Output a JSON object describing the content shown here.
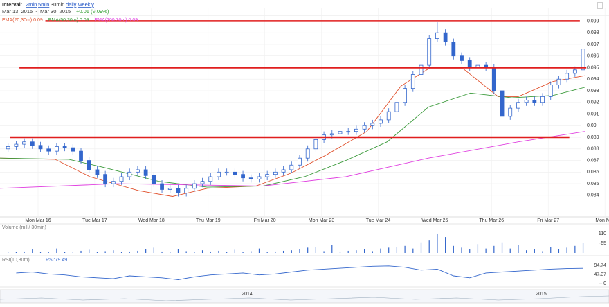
{
  "header": {
    "interval_label": "Interval:",
    "intervals": [
      "2min",
      "5min",
      "30min",
      "daily",
      "weekly"
    ],
    "range": "Mar 13, 2015  -  Mar 30, 2015",
    "change": "+0.01 (9.09%)"
  },
  "chart_data": [
    {
      "type": "candlestick",
      "color": "#3366cc",
      "x": [
        1,
        2,
        3,
        4,
        5,
        6,
        7,
        8,
        9,
        10,
        11,
        12,
        13,
        14,
        15,
        16,
        17,
        18,
        19,
        20,
        21,
        22,
        23,
        24,
        25,
        26,
        27,
        28,
        29,
        30,
        31,
        32,
        33,
        34,
        35,
        36,
        37,
        38,
        39,
        40,
        41,
        42,
        43,
        44,
        45,
        46,
        47,
        48,
        49,
        50,
        51,
        52,
        53,
        54,
        55,
        56,
        57,
        58,
        59,
        60,
        61,
        62,
        63,
        64,
        65,
        66,
        67,
        68,
        69,
        70,
        71,
        72
      ],
      "open": [
        0.088,
        0.0882,
        0.0884,
        0.0886,
        0.0883,
        0.088,
        0.0878,
        0.0882,
        0.0881,
        0.0878,
        0.087,
        0.0862,
        0.0858,
        0.085,
        0.0852,
        0.0856,
        0.086,
        0.0862,
        0.0857,
        0.085,
        0.0845,
        0.0846,
        0.0842,
        0.0846,
        0.085,
        0.0852,
        0.0856,
        0.086,
        0.086,
        0.0858,
        0.0855,
        0.0854,
        0.0856,
        0.0858,
        0.086,
        0.0862,
        0.0866,
        0.0872,
        0.088,
        0.0888,
        0.0892,
        0.0893,
        0.0895,
        0.0895,
        0.0897,
        0.09,
        0.0902,
        0.0905,
        0.0912,
        0.092,
        0.0932,
        0.0944,
        0.0952,
        0.0975,
        0.098,
        0.0972,
        0.096,
        0.0956,
        0.095,
        0.0952,
        0.095,
        0.093,
        0.0908,
        0.0915,
        0.092,
        0.0922,
        0.092,
        0.0925,
        0.0935,
        0.094,
        0.0945,
        0.0948
      ],
      "high": [
        0.0885,
        0.0887,
        0.0889,
        0.0889,
        0.0886,
        0.0883,
        0.0885,
        0.0885,
        0.0884,
        0.0881,
        0.0873,
        0.0865,
        0.0861,
        0.0855,
        0.0859,
        0.0863,
        0.0865,
        0.0865,
        0.086,
        0.0853,
        0.0849,
        0.0849,
        0.0849,
        0.0853,
        0.0855,
        0.0859,
        0.0863,
        0.0863,
        0.0863,
        0.0861,
        0.0858,
        0.0859,
        0.0861,
        0.0863,
        0.0865,
        0.0869,
        0.0875,
        0.0883,
        0.0891,
        0.0895,
        0.0896,
        0.0898,
        0.0898,
        0.09,
        0.0903,
        0.0905,
        0.0908,
        0.0915,
        0.0923,
        0.0935,
        0.0947,
        0.0955,
        0.0978,
        0.0989,
        0.0983,
        0.0975,
        0.0963,
        0.0959,
        0.0955,
        0.0955,
        0.0953,
        0.0933,
        0.0918,
        0.0923,
        0.0925,
        0.0925,
        0.0928,
        0.0938,
        0.0943,
        0.0948,
        0.0951,
        0.0969
      ],
      "low": [
        0.0877,
        0.0879,
        0.0881,
        0.088,
        0.0877,
        0.0875,
        0.0875,
        0.0878,
        0.0875,
        0.0867,
        0.0859,
        0.0855,
        0.0847,
        0.0847,
        0.0849,
        0.0853,
        0.0857,
        0.0854,
        0.0847,
        0.0842,
        0.0842,
        0.0839,
        0.0839,
        0.0843,
        0.0847,
        0.0849,
        0.0853,
        0.0857,
        0.0855,
        0.0852,
        0.0851,
        0.0851,
        0.0853,
        0.0855,
        0.0857,
        0.0859,
        0.0863,
        0.0869,
        0.0877,
        0.0885,
        0.0889,
        0.089,
        0.0892,
        0.0892,
        0.0894,
        0.0897,
        0.0899,
        0.0902,
        0.0909,
        0.0917,
        0.0929,
        0.0941,
        0.0949,
        0.0972,
        0.0969,
        0.0957,
        0.0953,
        0.0947,
        0.0947,
        0.0947,
        0.0927,
        0.09,
        0.0905,
        0.0912,
        0.0917,
        0.0917,
        0.0917,
        0.0922,
        0.0932,
        0.0937,
        0.0942,
        0.0945
      ],
      "close": [
        0.0882,
        0.0884,
        0.0886,
        0.0883,
        0.088,
        0.0878,
        0.0882,
        0.0881,
        0.0878,
        0.087,
        0.0862,
        0.0858,
        0.085,
        0.0852,
        0.0856,
        0.086,
        0.0862,
        0.0857,
        0.085,
        0.0845,
        0.0846,
        0.0842,
        0.0846,
        0.085,
        0.0852,
        0.0856,
        0.086,
        0.086,
        0.0858,
        0.0855,
        0.0854,
        0.0856,
        0.0858,
        0.086,
        0.0862,
        0.0866,
        0.0872,
        0.088,
        0.0888,
        0.0892,
        0.0893,
        0.0895,
        0.0895,
        0.0897,
        0.09,
        0.0902,
        0.0905,
        0.0912,
        0.092,
        0.0932,
        0.0944,
        0.0952,
        0.0975,
        0.098,
        0.0972,
        0.096,
        0.0956,
        0.095,
        0.0952,
        0.095,
        0.093,
        0.0908,
        0.0915,
        0.092,
        0.0922,
        0.092,
        0.0925,
        0.0935,
        0.094,
        0.0945,
        0.0948,
        0.0966
      ],
      "series": [
        {
          "name": "EMA(20,30m):0.09",
          "color": "#e0502c",
          "x": [
            0,
            6.8,
            11.1,
            17.1,
            21.3,
            25.6,
            31.6,
            35.9,
            40.1,
            45.3,
            49.5,
            52.9,
            57.2,
            61.5,
            64,
            68.3,
            72.2
          ],
          "values": [
            0.0872,
            0.0871,
            0.0856,
            0.0844,
            0.0839,
            0.0846,
            0.0848,
            0.0859,
            0.0874,
            0.0895,
            0.0934,
            0.0949,
            0.0949,
            0.0925,
            0.0925,
            0.0938,
            0.0943
          ]
        },
        {
          "name": "EMA(50,30m):0.09",
          "color": "#3a9a3a",
          "x": [
            0,
            8.5,
            12.8,
            19.6,
            25.6,
            32.5,
            37.6,
            42.7,
            47.8,
            52.9,
            58.1,
            63.2,
            68.3,
            72.2
          ],
          "values": [
            0.0872,
            0.0871,
            0.0864,
            0.0852,
            0.0847,
            0.0848,
            0.0856,
            0.087,
            0.0886,
            0.0916,
            0.0928,
            0.0924,
            0.0926,
            0.0933
          ]
        },
        {
          "name": "EMA(200,30m):0.09",
          "color": "#e040e0",
          "x": [
            0,
            14.5,
            32.5,
            42.7,
            52.9,
            64,
            72.2
          ],
          "values": [
            0.0846,
            0.085,
            0.0848,
            0.0856,
            0.0872,
            0.0886,
            0.0895
          ]
        }
      ],
      "lines": [
        {
          "value": 0.099,
          "x": [
            5.6,
            71.6
          ],
          "color": "#e01e1e"
        },
        {
          "value": 0.095,
          "x": [
            2.4,
            72.4
          ],
          "color": "#e01e1e"
        },
        {
          "value": 0.089,
          "x": [
            1.2,
            70.3
          ],
          "color": "#e01e1e"
        }
      ],
      "xlim": [
        0,
        75.2
      ],
      "xticks": [
        {
          "value": 4.7,
          "label": "Mon Mar 16"
        },
        {
          "value": 11.7,
          "label": "Tue Mar 17"
        },
        {
          "value": 18.7,
          "label": "Wed Mar 18"
        },
        {
          "value": 25.7,
          "label": "Thu Mar 19"
        },
        {
          "value": 32.7,
          "label": "Fri Mar 20"
        },
        {
          "value": 39.7,
          "label": "Mon Mar 23"
        },
        {
          "value": 46.7,
          "label": "Tue Mar 24"
        },
        {
          "value": 53.7,
          "label": "Wed Mar 25"
        },
        {
          "value": 60.7,
          "label": "Thu Mar 26"
        },
        {
          "value": 67.7,
          "label": "Fri Mar 27"
        },
        {
          "value": 74.7,
          "label": "Mon Mar"
        }
      ],
      "ylim": [
        0.0822,
        0.1001
      ],
      "yticks": [
        0.084,
        0.085,
        0.086,
        0.087,
        0.088,
        0.089,
        0.09,
        0.091,
        0.092,
        0.093,
        0.094,
        0.095,
        0.096,
        0.097,
        0.098,
        0.099
      ],
      "grid": true
    },
    {
      "type": "bar",
      "title": "Volume (mil / 30min)",
      "color": "#3366cc",
      "x": [
        1,
        2,
        3,
        4,
        5,
        6,
        7,
        8,
        9,
        10,
        11,
        12,
        13,
        14,
        15,
        16,
        17,
        18,
        19,
        20,
        21,
        22,
        23,
        24,
        25,
        26,
        27,
        28,
        29,
        30,
        31,
        32,
        33,
        34,
        35,
        36,
        37,
        38,
        39,
        40,
        41,
        42,
        43,
        44,
        45,
        46,
        47,
        48,
        49,
        50,
        51,
        52,
        53,
        54,
        55,
        56,
        57,
        58,
        59,
        60,
        61,
        62,
        63,
        64,
        65,
        66,
        67,
        68,
        69,
        70,
        71,
        72
      ],
      "values": [
        3,
        5,
        8,
        20,
        4,
        6,
        25,
        5,
        3,
        12,
        18,
        6,
        10,
        15,
        4,
        8,
        12,
        20,
        30,
        8,
        5,
        22,
        10,
        6,
        15,
        8,
        12,
        5,
        18,
        6,
        10,
        25,
        5,
        8,
        12,
        15,
        20,
        30,
        35,
        10,
        45,
        8,
        12,
        15,
        20,
        10,
        25,
        30,
        35,
        40,
        25,
        60,
        70,
        110,
        90,
        40,
        30,
        20,
        50,
        25,
        40,
        60,
        25,
        45,
        15,
        20,
        10,
        35,
        20,
        30,
        40,
        55
      ],
      "xlim": [
        0,
        75.2
      ],
      "ylim": [
        0,
        157
      ],
      "yticks": [
        55,
        110
      ]
    },
    {
      "type": "line",
      "title": "RSI(10,30m)",
      "series": [
        {
          "name": "RSI:79.49",
          "color": "#3366cc",
          "x": [
            2,
            4,
            6,
            8,
            10,
            12,
            14,
            16,
            18,
            20,
            22,
            24,
            26,
            28,
            30,
            32,
            34,
            36,
            38,
            40,
            42,
            44,
            46,
            48,
            50,
            52,
            54,
            56,
            58,
            60,
            62,
            64,
            66,
            68,
            70,
            72
          ],
          "values": [
            55,
            60,
            50,
            45,
            35,
            30,
            25,
            40,
            35,
            30,
            20,
            35,
            45,
            50,
            55,
            45,
            50,
            60,
            70,
            75,
            80,
            85,
            90,
            92,
            85,
            70,
            75,
            40,
            30,
            55,
            60,
            65,
            70,
            75,
            78,
            79.49
          ]
        }
      ],
      "xlim": [
        0,
        75.2
      ],
      "ylim": [
        -11,
        135
      ],
      "yticks": [
        0,
        47.37,
        94.74
      ]
    }
  ],
  "navigator": {
    "labels": [
      "2014",
      "2015"
    ]
  }
}
